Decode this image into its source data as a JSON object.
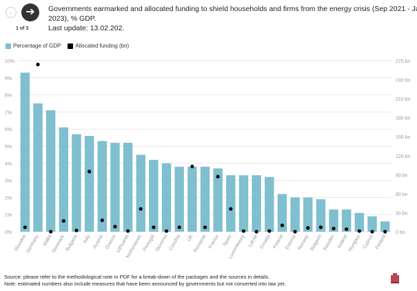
{
  "nav": {
    "prev_icon": "arrow-left-icon",
    "next_icon": "arrow-right-icon",
    "page_counter": "1 of 3"
  },
  "title": {
    "line1": "Governments earmarked and allocated funding to shield households and firms from the energy crisis (Sep 2021 - Jan",
    "line2": "2023), % GDP.",
    "line3": "Last update: 13.02.202."
  },
  "footer": {
    "source": "Source: please refer to the methodological note in PDF for a break-down of the packages and the sources in details.",
    "note": "Note: estimated numbers also include measures that have been announced by governments but not converted into law yet."
  },
  "colors": {
    "bar": "#7fbfcf",
    "dot": "#000000",
    "grid": "#e6e6e6",
    "tick": "#999999",
    "logo": "#b8454f"
  },
  "chart_data": {
    "type": "bar",
    "legend_position": "top-left",
    "grid": true,
    "categories": [
      "Slovakia",
      "Germany",
      "Malta",
      "Denmark",
      "Bulgaria",
      "Italy",
      "Austria",
      "Greece",
      "Lithuania",
      "Netherlands",
      "Portugal",
      "Slovenia",
      "Czechia",
      "UK",
      "Romania",
      "France",
      "Spain",
      "Luxembourg",
      "Latvia",
      "Croatia",
      "Poland",
      "Estonia",
      "Norway",
      "Belgium",
      "Sweden",
      "Ireland",
      "Hungary",
      "Cyprus",
      "Finland"
    ],
    "series": [
      {
        "name": "Percentage of GDP",
        "axis": "left",
        "type": "bar",
        "values": [
          9.3,
          7.5,
          7.1,
          6.1,
          5.7,
          5.6,
          5.3,
          5.2,
          5.2,
          4.5,
          4.2,
          4.0,
          3.8,
          3.8,
          3.8,
          3.7,
          3.3,
          3.3,
          3.3,
          3.2,
          2.2,
          2.0,
          2.0,
          1.9,
          1.3,
          1.3,
          1.1,
          0.9,
          0.6
        ]
      },
      {
        "name": "Allocated funding (bn)",
        "axis": "right",
        "type": "scatter",
        "values": [
          7,
          264,
          0,
          17,
          2,
          95,
          18,
          8,
          1,
          36,
          7,
          1,
          7,
          103,
          7,
          87,
          36,
          1,
          0,
          1,
          10,
          0,
          6,
          7,
          5,
          4,
          1,
          0,
          0
        ]
      }
    ],
    "y_left": {
      "ticks": [
        "0%",
        "1%",
        "2%",
        "3%",
        "4%",
        "5%",
        "6%",
        "7%",
        "8%",
        "9%",
        "10%"
      ],
      "range": [
        0,
        10
      ]
    },
    "y_right": {
      "ticks": [
        "0 bn",
        "30 bn",
        "60 bn",
        "90 bn",
        "120 bn",
        "150 bn",
        "180 bn",
        "210 bn",
        "240 bn",
        "270 bn"
      ],
      "range": [
        0,
        270
      ]
    }
  }
}
